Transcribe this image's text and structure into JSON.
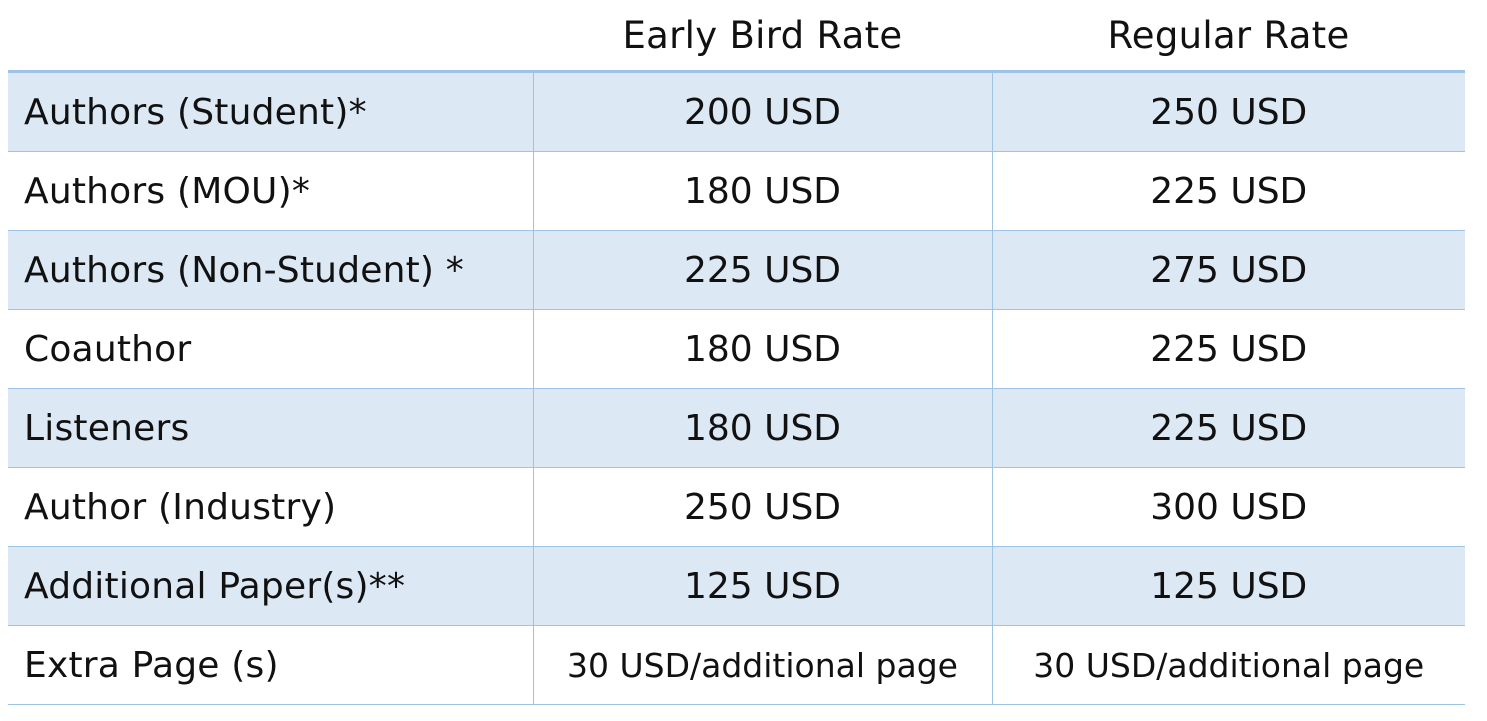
{
  "header": {
    "blank": "",
    "early_bird": "Early Bird Rate",
    "regular": "Regular Rate"
  },
  "rows": [
    {
      "category": "Authors (Student)*",
      "early": "200 USD",
      "regular": "250 USD"
    },
    {
      "category": "Authors (MOU)*",
      "early": "180 USD",
      "regular": "225 USD"
    },
    {
      "category": "Authors (Non-Student) *",
      "early": "225 USD",
      "regular": "275 USD"
    },
    {
      "category": "Coauthor",
      "early": "180 USD",
      "regular": "225 USD"
    },
    {
      "category": "Listeners",
      "early": "180 USD",
      "regular": "225 USD"
    },
    {
      "category": "Author (Industry)",
      "early": "250 USD",
      "regular": "300 USD"
    },
    {
      "category": "Additional Paper(s)**",
      "early": "125 USD",
      "regular": "125 USD"
    },
    {
      "category": "Extra Page (s)",
      "early": "30 USD/additional page",
      "regular": "30 USD/additional page"
    }
  ],
  "colors": {
    "row_shade": "#dde8f5",
    "border": "#9dc3e6",
    "text": "#111111"
  }
}
